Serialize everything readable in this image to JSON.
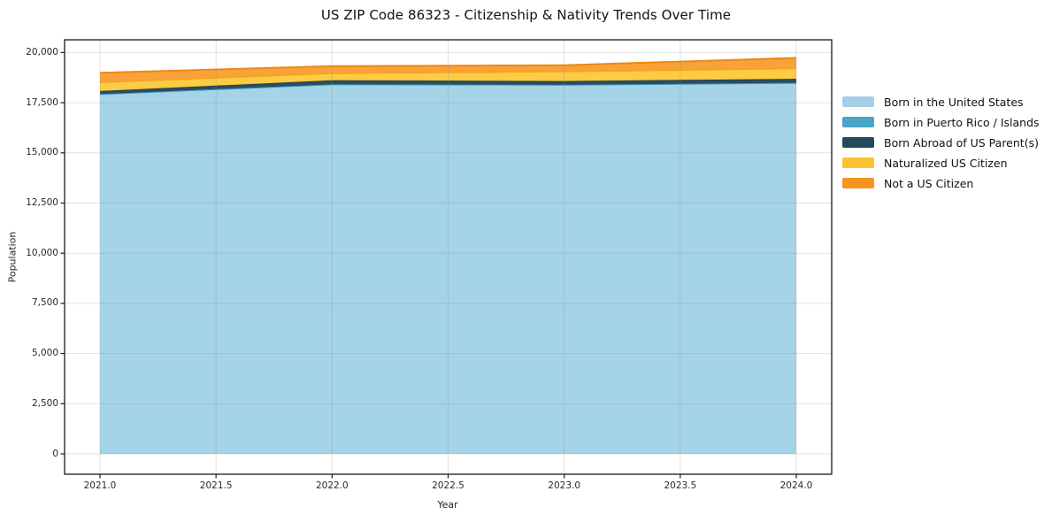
{
  "title": "US ZIP Code 86323 - Citizenship & Nativity Trends Over Time",
  "chart_data": {
    "type": "area",
    "stacked": true,
    "title": "US ZIP Code 86323 - Citizenship & Nativity Trends Over Time",
    "xlabel": "Year",
    "ylabel": "Population",
    "x": [
      2021,
      2022,
      2023,
      2024
    ],
    "x_tick_values": [
      2021.0,
      2021.5,
      2022.0,
      2022.5,
      2023.0,
      2023.5,
      2024.0
    ],
    "x_tick_labels": [
      "2021.0",
      "2021.5",
      "2022.0",
      "2022.5",
      "2023.0",
      "2023.5",
      "2024.0"
    ],
    "y_tick_values": [
      0,
      2500,
      5000,
      7500,
      10000,
      12500,
      15000,
      17500,
      20000
    ],
    "y_tick_labels": [
      "0",
      "2,500",
      "5,000",
      "7,500",
      "10,000",
      "12,500",
      "15,000",
      "17,500",
      "20,000"
    ],
    "ylim": [
      0,
      20000
    ],
    "grid": true,
    "legend_position": "right-of-plot",
    "background_color": "#ffffff",
    "gridline_color": "#e8e8e8",
    "series": [
      {
        "name": "Born in the United States",
        "values": [
          17900,
          18380,
          18360,
          18450
        ],
        "fill": "#a2d2e7",
        "line": "#a2d2e7",
        "swatch": "#a6cfe5"
      },
      {
        "name": "Born in Puerto Rico / Islands",
        "values": [
          30,
          40,
          40,
          40
        ],
        "fill": "#4aa5c5",
        "line": "#3e97b7",
        "swatch": "#4aa5c5"
      },
      {
        "name": "Born Abroad of US Parent(s)",
        "values": [
          150,
          200,
          180,
          200
        ],
        "fill": "#25485c",
        "line": "#203f51",
        "swatch": "#25485c"
      },
      {
        "name": "Naturalized US Citizen",
        "values": [
          440,
          350,
          480,
          520
        ],
        "fill": "#fdc93e",
        "line": "#f3a81c",
        "swatch": "#fcc231"
      },
      {
        "name": "Not a US Citizen",
        "values": [
          470,
          350,
          310,
          520
        ],
        "fill": "#f89f33",
        "line": "#ef8713",
        "swatch": "#f7941f"
      }
    ]
  }
}
